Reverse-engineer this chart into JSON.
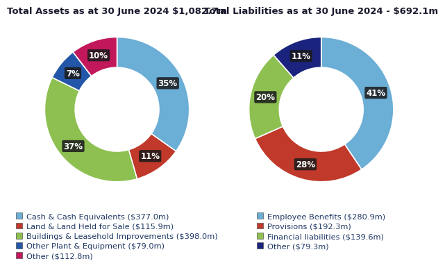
{
  "assets_title": "Total Assets as at 30 June 2024 $1,082.7m",
  "liabilities_title": "Total Liabilities as at 30 June 2024 - $692.1m",
  "assets_values": [
    377.0,
    115.9,
    398.0,
    79.0,
    112.8
  ],
  "assets_pct": [
    "35%",
    "11%",
    "37%",
    "7%",
    "10%"
  ],
  "assets_colors": [
    "#6BAED6",
    "#C0392B",
    "#8DC050",
    "#2356A8",
    "#C2185B"
  ],
  "assets_labels": [
    "Cash & Cash Equivalents ($377.0m)",
    "Land & Land Held for Sale ($115.9m)",
    "Buildings & Leasehold Improvements ($398.0m)",
    "Other Plant & Equipment ($79.0m)",
    "Other ($112.8m)"
  ],
  "liabilities_values": [
    280.9,
    192.3,
    139.6,
    79.3
  ],
  "liabilities_pct": [
    "41%",
    "28%",
    "20%",
    "11%"
  ],
  "liabilities_colors": [
    "#6BAED6",
    "#C0392B",
    "#8DC050",
    "#1A237E"
  ],
  "liabilities_labels": [
    "Employee Benefits ($280.9m)",
    "Provisions ($192.3m)",
    "Financial liabilities ($139.6m)",
    "Other ($79.3m)"
  ],
  "bg_color": "#FFFFFF",
  "title_fontsize": 9.5,
  "legend_fontsize": 8.2,
  "pct_fontsize": 8.5,
  "title_color": "#1A1A2E",
  "legend_text_color": "#1F3864",
  "donut_width": 0.42,
  "pct_label_bg": "#1A1A1A"
}
